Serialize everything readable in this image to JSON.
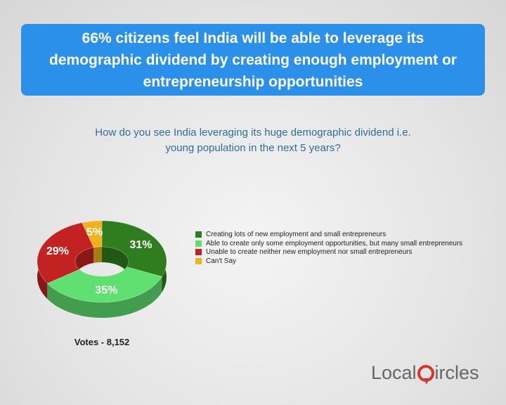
{
  "header": {
    "title": "66% citizens feel India will be able to leverage its demographic dividend by creating enough employment or entrepreneurship opportunities"
  },
  "chart_data": {
    "type": "donut3d",
    "title": "How do you see India leveraging its huge demographic dividend i.e. young population in the next 5 years?",
    "categories": [
      "Creating lots of new employment and small entrepreneurs",
      "Able to create only some employment opportunities, but many small entrepreneurs",
      "Unable to create neither new employment nor small entrepreneurs",
      "Can't Say"
    ],
    "values": [
      31,
      35,
      29,
      5
    ],
    "value_labels": [
      "31%",
      "35%",
      "29%",
      "5%"
    ],
    "colors": [
      "#2f7d1f",
      "#5fe070",
      "#c22222",
      "#f0b11c"
    ],
    "note": "Votes - 8,152"
  },
  "footer": {
    "logo_left": "Local",
    "logo_right": "ircles"
  }
}
